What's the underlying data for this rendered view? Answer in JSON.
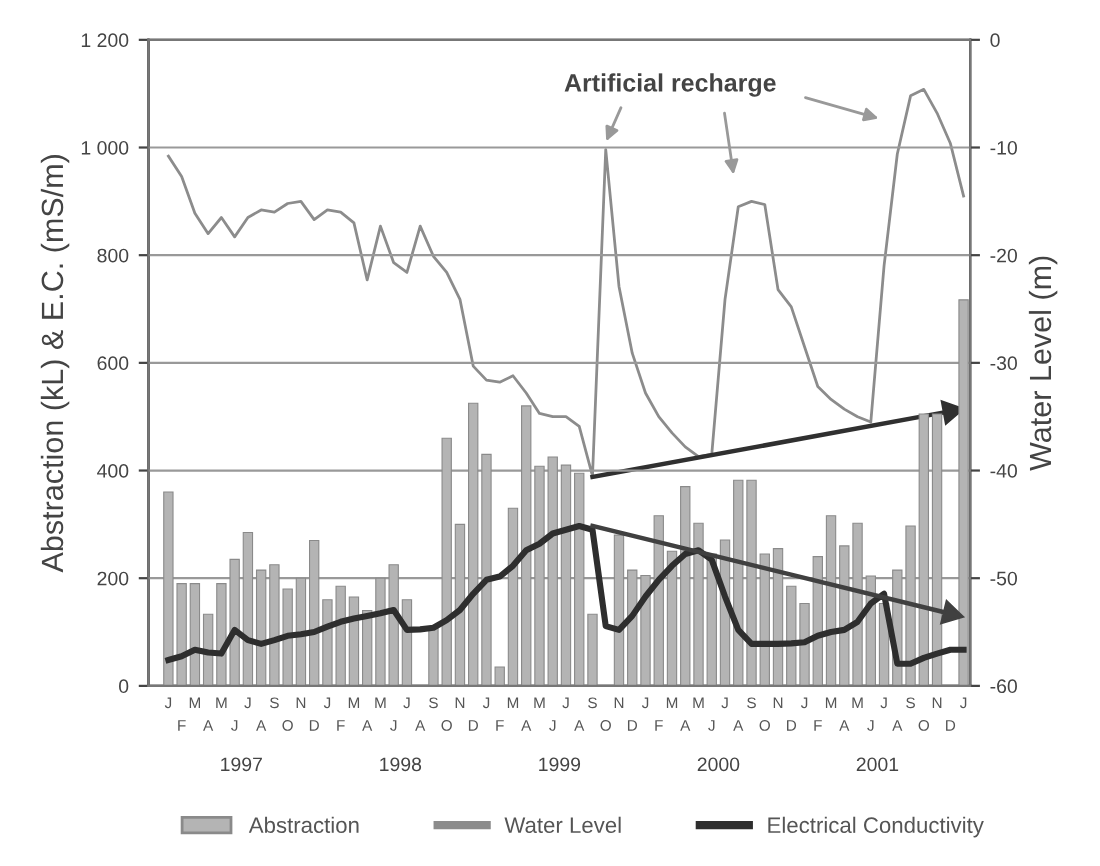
{
  "chart_data": {
    "type": "bar",
    "ylabel": "Abstraction (kL) & E.C. (mS/m)",
    "y2label": "Water Level (m)",
    "categories": [
      "J",
      "F",
      "M",
      "A",
      "M",
      "J",
      "J",
      "A",
      "S",
      "O",
      "N",
      "D",
      "J",
      "F",
      "M",
      "A",
      "M",
      "J",
      "J",
      "A",
      "S",
      "O",
      "N",
      "D",
      "J",
      "F",
      "M",
      "A",
      "M",
      "J",
      "J",
      "A",
      "S",
      "O",
      "N",
      "D",
      "J",
      "F",
      "M",
      "A",
      "M",
      "J",
      "J",
      "A",
      "S",
      "O",
      "N",
      "D",
      "J",
      "F",
      "M",
      "A",
      "M",
      "J",
      "J",
      "A",
      "S",
      "O",
      "N",
      "D",
      "J"
    ],
    "series": [
      {
        "name": "Abstraction",
        "color": "#b4b4b4",
        "values": [
          360,
          190,
          190,
          133,
          190,
          235,
          285,
          215,
          225,
          180,
          200,
          270,
          160,
          185,
          165,
          140,
          200,
          225,
          160,
          null,
          110,
          460,
          300,
          525,
          430,
          35,
          330,
          520,
          408,
          425,
          410,
          395,
          133,
          null,
          280,
          215,
          205,
          316,
          250,
          370,
          302,
          245,
          271,
          382,
          382,
          245,
          255,
          185,
          153,
          240,
          316,
          260,
          302,
          204,
          153,
          215,
          297,
          505,
          505,
          null,
          717
        ]
      },
      {
        "name": "Water Level",
        "type": "line",
        "axis": "y2",
        "color": "#8c8c8c",
        "values": [
          -10.8,
          -12.7,
          -16.1,
          -18,
          -16.5,
          -18.3,
          -16.5,
          -15.8,
          -16,
          -15.2,
          -15,
          -16.7,
          -15.8,
          -16,
          -17,
          -22.3,
          -17.3,
          -20.7,
          -21.6,
          -17.3,
          -20.1,
          -21.6,
          -24.1,
          -30.3,
          -31.6,
          -31.8,
          -31.2,
          -32.8,
          -34.7,
          -35,
          -35,
          -35.9,
          -40.5,
          -10.2,
          -22.9,
          -29.1,
          -32.8,
          -35,
          -36.5,
          -37.8,
          -38.7,
          -38.5,
          -24.1,
          -15.5,
          -15,
          -15.3,
          -23.2,
          -24.8,
          -28.5,
          -32.2,
          -33.4,
          -34.3,
          -35,
          -35.5,
          -21,
          -10.6,
          -5.2,
          -4.6,
          -6.8,
          -9.6,
          -14.5
        ]
      },
      {
        "name": "Electrical Conductivity",
        "type": "line",
        "color": "#2e2e2e",
        "values": [
          48,
          55,
          67,
          62,
          60,
          104,
          85,
          78,
          85,
          93,
          96,
          100,
          110,
          119,
          125,
          130,
          135,
          141,
          104,
          105,
          108,
          122,
          141,
          171,
          197,
          203,
          223,
          252,
          264,
          283,
          290,
          297,
          290,
          111,
          104,
          130,
          166,
          197,
          223,
          245,
          252,
          234,
          166,
          104,
          78,
          78,
          78,
          79,
          81,
          93,
          100,
          104,
          119,
          153,
          171,
          41,
          41,
          52,
          60,
          67,
          67
        ]
      },
      {
        "type": "line",
        "axis": "y2",
        "color": "#303030",
        "marker": "triangle",
        "values": [
          null,
          null,
          null,
          null,
          null,
          null,
          null,
          null,
          null,
          null,
          null,
          null,
          null,
          null,
          null,
          null,
          null,
          null,
          null,
          null,
          null,
          null,
          null,
          null,
          null,
          null,
          null,
          null,
          null,
          null,
          null,
          null,
          -40.6,
          null,
          null,
          null,
          null,
          null,
          null,
          null,
          null,
          null,
          null,
          null,
          null,
          null,
          null,
          null,
          null,
          null,
          null,
          null,
          null,
          null,
          null,
          null,
          null,
          null,
          null,
          -34.5,
          null
        ]
      },
      {
        "type": "line",
        "color": "#404040",
        "marker": "triangle",
        "values": [
          null,
          null,
          null,
          null,
          null,
          null,
          null,
          null,
          null,
          null,
          null,
          null,
          null,
          null,
          null,
          null,
          null,
          null,
          null,
          null,
          null,
          null,
          null,
          null,
          null,
          null,
          null,
          null,
          null,
          null,
          null,
          null,
          297,
          null,
          null,
          null,
          null,
          null,
          null,
          null,
          null,
          null,
          null,
          null,
          null,
          null,
          null,
          null,
          null,
          null,
          null,
          null,
          null,
          null,
          null,
          null,
          null,
          null,
          null,
          134,
          null
        ]
      }
    ],
    "ylim": [
      0,
      1200
    ],
    "yticks": [
      0,
      200,
      400,
      600,
      800,
      {
        "value": 1000,
        "label": "1 000"
      },
      {
        "value": 1200,
        "label": "1 200"
      }
    ],
    "y2lim": [
      -60,
      0
    ],
    "y2ticks": [
      -60,
      -50,
      -40,
      -30,
      -20,
      -10,
      0
    ],
    "annotations": [
      "1997",
      "1998",
      "1999",
      "2000",
      "2001",
      "Artificial recharge"
    ],
    "grid": "y",
    "legend": "bottom"
  }
}
